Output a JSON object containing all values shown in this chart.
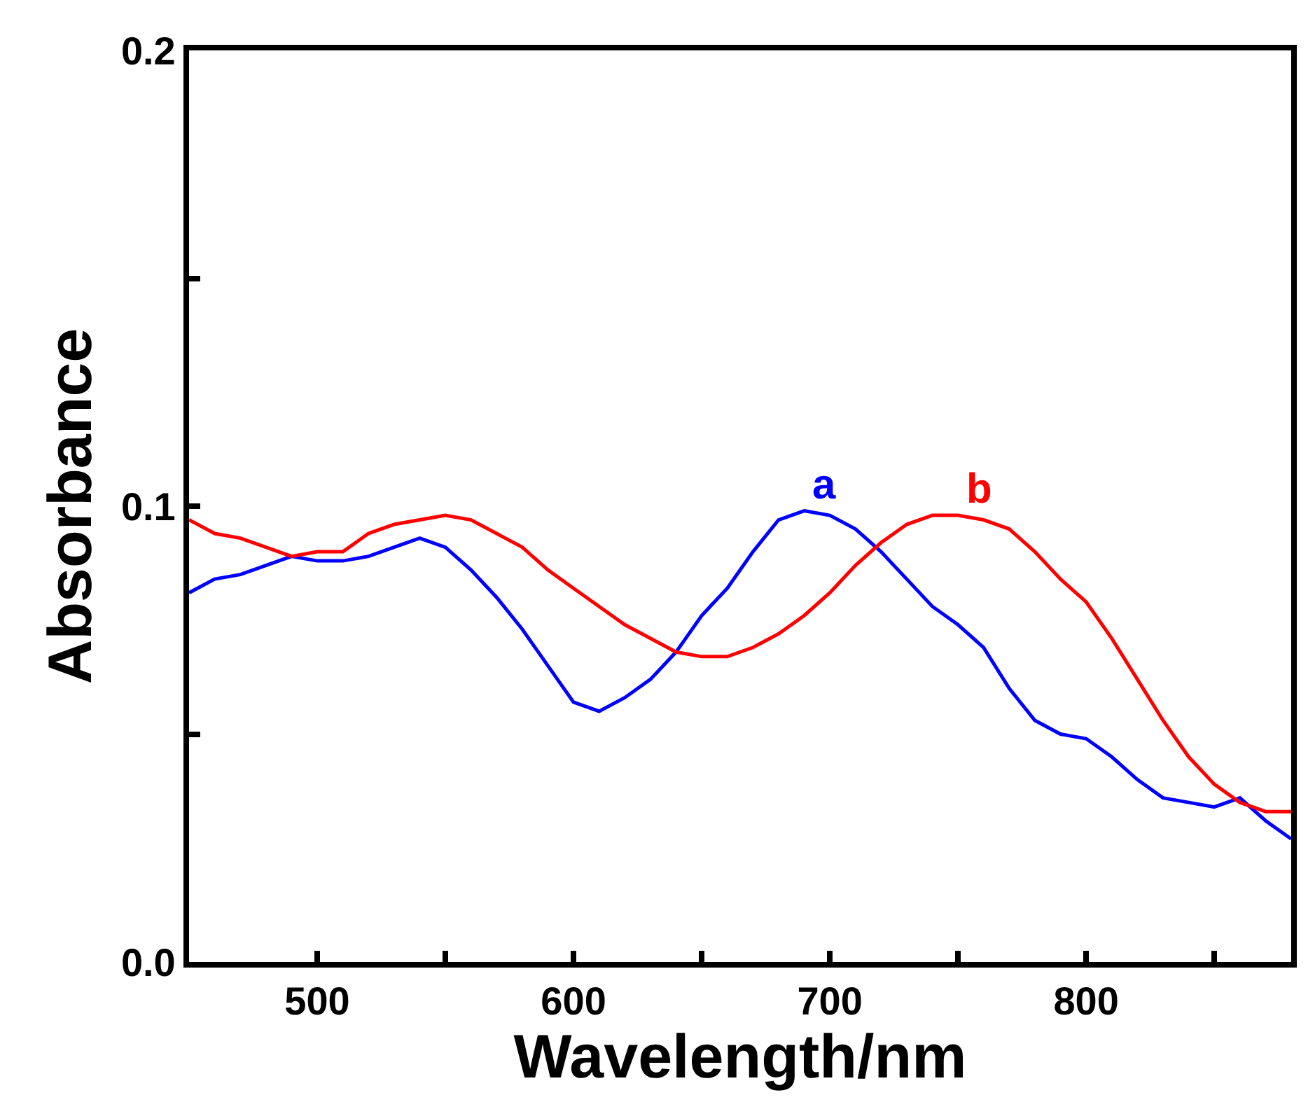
{
  "chart_data": {
    "type": "line",
    "xlabel": "Wavelength/nm",
    "ylabel": "Absorbance",
    "x": [
      450,
      460,
      470,
      480,
      490,
      500,
      510,
      520,
      530,
      540,
      550,
      560,
      570,
      580,
      590,
      600,
      610,
      620,
      630,
      640,
      650,
      660,
      670,
      680,
      690,
      700,
      710,
      720,
      730,
      740,
      750,
      760,
      770,
      780,
      790,
      800,
      810,
      820,
      830,
      840,
      850,
      860,
      870,
      880
    ],
    "series": [
      {
        "name": "a",
        "color": "#0000ff",
        "values": [
          0.081,
          0.084,
          0.085,
          0.087,
          0.089,
          0.088,
          0.088,
          0.089,
          0.091,
          0.093,
          0.091,
          0.086,
          0.08,
          0.073,
          0.065,
          0.057,
          0.055,
          0.058,
          0.062,
          0.068,
          0.076,
          0.082,
          0.09,
          0.097,
          0.099,
          0.098,
          0.095,
          0.09,
          0.084,
          0.078,
          0.074,
          0.069,
          0.06,
          0.053,
          0.05,
          0.049,
          0.045,
          0.04,
          0.036,
          0.035,
          0.034,
          0.036,
          0.031,
          0.027
        ]
      },
      {
        "name": "b",
        "color": "#ff0000",
        "values": [
          0.097,
          0.094,
          0.093,
          0.091,
          0.089,
          0.09,
          0.09,
          0.094,
          0.096,
          0.097,
          0.098,
          0.097,
          0.094,
          0.091,
          0.086,
          0.082,
          0.078,
          0.074,
          0.071,
          0.068,
          0.067,
          0.067,
          0.069,
          0.072,
          0.076,
          0.081,
          0.087,
          0.092,
          0.096,
          0.098,
          0.098,
          0.097,
          0.095,
          0.09,
          0.084,
          0.079,
          0.071,
          0.062,
          0.053,
          0.045,
          0.039,
          0.035,
          0.033,
          0.033
        ]
      }
    ],
    "xlim": [
      450,
      880
    ],
    "xticks": [
      500,
      {
        "value": 550,
        "label": null
      },
      600,
      {
        "value": 650,
        "label": null
      },
      700,
      {
        "value": 750,
        "label": null
      },
      800,
      {
        "value": 850,
        "label": null
      }
    ],
    "ylim": [
      0,
      0.2
    ],
    "yticks": [
      {
        "value": 0,
        "label": "0.0"
      },
      {
        "value": 0.05,
        "label": null
      },
      {
        "value": 0.1,
        "label": "0.1"
      },
      {
        "value": 0.15,
        "label": null
      },
      {
        "value": 0.2,
        "label": "0.2"
      }
    ],
    "legend": false,
    "marker": "none",
    "line_style": "solid"
  }
}
